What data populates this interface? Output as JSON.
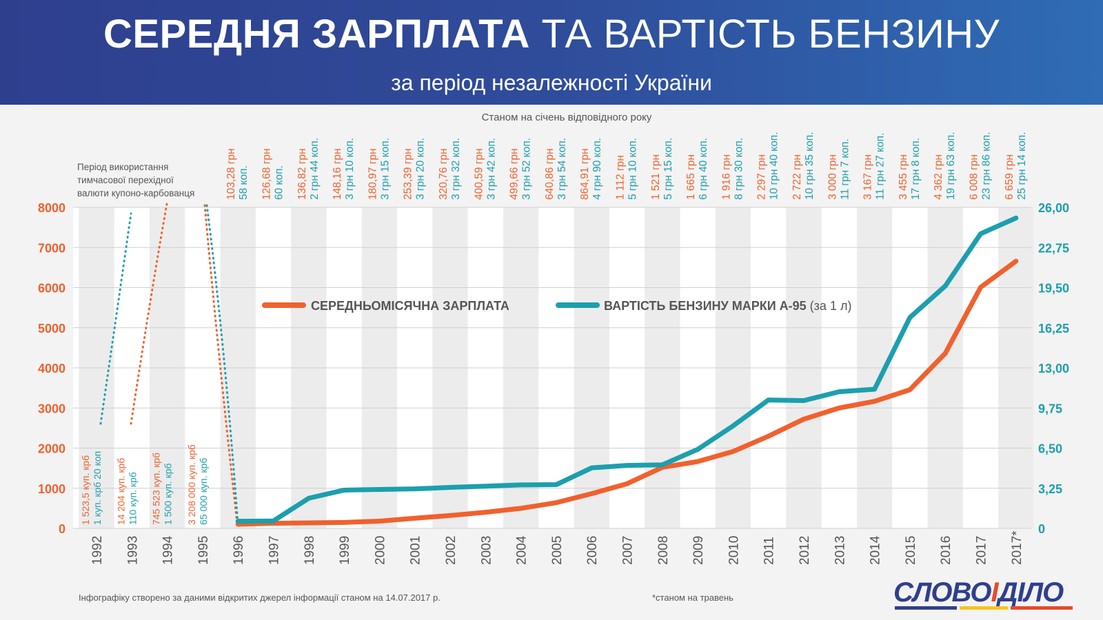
{
  "header": {
    "title_bold": "СЕРЕДНЯ ЗАРПЛАТА",
    "title_regular": "ТА ВАРТІСТЬ БЕНЗИНУ",
    "subtitle": "за період незалежності України"
  },
  "note_top": "Станом на січень відповідного року",
  "transition_note": [
    "Період використання",
    "тимчасової перехідної",
    "валюти купоно-карбованця"
  ],
  "footnote_source": "Інфографіку створено за даними відкритих джерел інформації станом на 14.07.2017 р.",
  "footnote_star": "*станом на травень",
  "logo": {
    "part1": "СЛОВО",
    "part2": "І",
    "part3": "ДІЛО"
  },
  "colors": {
    "salary": "#f0612d",
    "petrol": "#1c9fae",
    "axis_text": "#555555",
    "grid": "#cfcfcf"
  },
  "chart_data": {
    "type": "line",
    "x": [
      "1992",
      "1993",
      "1994",
      "1995",
      "1996",
      "1997",
      "1998",
      "1999",
      "2000",
      "2001",
      "2002",
      "2003",
      "2004",
      "2005",
      "2006",
      "2007",
      "2008",
      "2009",
      "2010",
      "2011",
      "2012",
      "2013",
      "2014",
      "2015",
      "2016",
      "2017",
      "2017*"
    ],
    "y_left": {
      "ticks": [
        "0",
        "1000",
        "2000",
        "3000",
        "4000",
        "5000",
        "6000",
        "7000",
        "8000"
      ],
      "range": [
        0,
        8000
      ]
    },
    "y_right": {
      "ticks": [
        "0",
        "3,25",
        "6,50",
        "9,75",
        "13,00",
        "16,25",
        "19,50",
        "22,75",
        "26,00"
      ],
      "range": [
        0,
        26
      ]
    },
    "legend": [
      {
        "label": "СЕРЕДНЬОМІСЯЧНА ЗАРПЛАТА",
        "note": ""
      },
      {
        "label": "ВАРТІСТЬ БЕНЗИНУ МАРКИ А-95",
        "note": "(за 1 л)"
      }
    ],
    "series": [
      {
        "name": "СЕРЕДНЬОМІСЯЧНА ЗАРПЛАТА",
        "axis": "left",
        "x": [
          "1996",
          "1997",
          "1998",
          "1999",
          "2000",
          "2001",
          "2002",
          "2003",
          "2004",
          "2005",
          "2006",
          "2007",
          "2008",
          "2009",
          "2010",
          "2011",
          "2012",
          "2013",
          "2014",
          "2015",
          "2016",
          "2017",
          "2017*"
        ],
        "values": [
          103.28,
          126.68,
          136.82,
          148.16,
          180.97,
          253.39,
          320.76,
          400.59,
          499.66,
          640.86,
          864.91,
          1112,
          1521,
          1665,
          1916,
          2297,
          2722,
          3000,
          3167,
          3455,
          4362,
          6008,
          6659
        ]
      },
      {
        "name": "ВАРТІСТЬ БЕНЗИНУ МАРКИ А-95",
        "axis": "right",
        "x": [
          "1996",
          "1997",
          "1998",
          "1999",
          "2000",
          "2001",
          "2002",
          "2003",
          "2004",
          "2005",
          "2006",
          "2007",
          "2008",
          "2009",
          "2010",
          "2011",
          "2012",
          "2013",
          "2014",
          "2015",
          "2016",
          "2017",
          "2017*"
        ],
        "values": [
          0.58,
          0.6,
          2.44,
          3.1,
          3.15,
          3.2,
          3.32,
          3.42,
          3.52,
          3.54,
          4.9,
          5.1,
          5.15,
          6.4,
          8.3,
          10.4,
          10.35,
          11.07,
          11.27,
          17.08,
          19.63,
          23.86,
          25.14
        ]
      }
    ],
    "top_labels": [
      {
        "x": "1996",
        "salary": "103,28 грн",
        "petrol": "58 коп."
      },
      {
        "x": "1997",
        "salary": "126,68 грн",
        "petrol": "60 коп."
      },
      {
        "x": "1998",
        "salary": "136,82 грн",
        "petrol": "2 грн 44 коп."
      },
      {
        "x": "1999",
        "salary": "148,16 грн",
        "petrol": "3 грн 10 коп."
      },
      {
        "x": "2000",
        "salary": "180,97 грн",
        "petrol": "3 грн 15 коп."
      },
      {
        "x": "2001",
        "salary": "253,39 грн",
        "petrol": "3 грн 20 коп."
      },
      {
        "x": "2002",
        "salary": "320,76 грн",
        "petrol": "3 грн 32 коп."
      },
      {
        "x": "2003",
        "salary": "400,59 грн",
        "petrol": "3 грн 42 коп."
      },
      {
        "x": "2004",
        "salary": "499,66 грн",
        "petrol": "3 грн 52 коп."
      },
      {
        "x": "2005",
        "salary": "640,86 грн",
        "petrol": "3 грн 54 коп."
      },
      {
        "x": "2006",
        "salary": "864,91 грн",
        "petrol": "4 грн 90 коп."
      },
      {
        "x": "2007",
        "salary": "1 112 грн",
        "petrol": "5 грн 10 коп."
      },
      {
        "x": "2008",
        "salary": "1 521 грн",
        "petrol": "5 грн 15 коп."
      },
      {
        "x": "2009",
        "salary": "1 665 грн",
        "petrol": "6 грн 40 коп."
      },
      {
        "x": "2010",
        "salary": "1 916 грн",
        "petrol": "8 грн 30 коп."
      },
      {
        "x": "2011",
        "salary": "2 297 грн",
        "petrol": "10 грн 40 коп."
      },
      {
        "x": "2012",
        "salary": "2 722 грн",
        "petrol": "10 грн 35 коп."
      },
      {
        "x": "2013",
        "salary": "3 000 грн",
        "petrol": "11 грн 7 коп."
      },
      {
        "x": "2014",
        "salary": "3 167 грн",
        "petrol": "11 грн 27 коп."
      },
      {
        "x": "2015",
        "salary": "3 455 грн",
        "petrol": "17 грн 8 коп."
      },
      {
        "x": "2016",
        "salary": "4 362 грн",
        "petrol": "19 грн 63 коп."
      },
      {
        "x": "2017",
        "salary": "6 008 грн",
        "petrol": "23 грн 86 коп."
      },
      {
        "x": "2017*",
        "salary": "6 659 грн",
        "petrol": "25 грн 14 коп."
      }
    ],
    "karbovanets_labels": [
      {
        "x": "1992",
        "salary": "1 523,5 куп. крб",
        "petrol": "1 куп. крб 20 коп"
      },
      {
        "x": "1993",
        "salary": "14 204 куп. крб",
        "petrol": "110 куп. крб"
      },
      {
        "x": "1994",
        "salary": "745 523 куп. крб",
        "petrol": "1 500 куп. крб"
      },
      {
        "x": "1995",
        "salary": "3 208 000 куп. крб",
        "petrol": "65 000 куп. крб"
      }
    ],
    "grid": true,
    "legend_position": "center"
  }
}
